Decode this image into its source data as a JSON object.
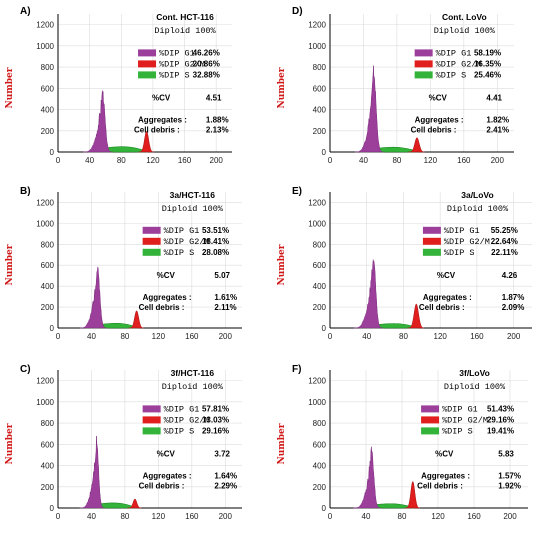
{
  "figure": {
    "y_axis_label": "Number",
    "colors": {
      "g1": "#9b3f9b",
      "g2m": "#e01e1e",
      "s": "#33b33a",
      "axis": "#000000",
      "grid": "#dcdcdc",
      "label_red": "#d01818"
    }
  },
  "chart_data": [
    {
      "type": "histogram",
      "panel": "A)",
      "title": "Cont. HCT-116",
      "subtitle": "Diploid 100%",
      "x_ticks": [
        "0",
        "40",
        "80",
        "120",
        "160",
        "200"
      ],
      "y_ticks": [
        "0",
        "200",
        "400",
        "600",
        "800",
        "1000",
        "1200"
      ],
      "xlim": [
        0,
        220
      ],
      "ylim": [
        0,
        1300
      ],
      "legend": [
        {
          "name": "%DIP G1",
          "value": "46.26%",
          "color": "#9b3f9b"
        },
        {
          "name": "%DIP G2/M",
          "value": "20.86%",
          "color": "#e01e1e"
        },
        {
          "name": "%DIP S",
          "value": "32.88%",
          "color": "#33b33a"
        }
      ],
      "cv_label": "%CV",
      "cv": "4.51",
      "aggregates_label": "Aggregates :",
      "aggregates": "1.88%",
      "debris_label": "Cell debris :",
      "debris": "2.13%",
      "g1_peak": {
        "x": 56,
        "height": 620,
        "sigma": 3.2,
        "start": 32
      },
      "g2m_peak": {
        "x": 112,
        "height": 195,
        "sigma": 2.6
      },
      "s_phase": {
        "start": 38,
        "end": 114,
        "center": 82,
        "height": 50
      }
    },
    {
      "type": "histogram",
      "panel": "D)",
      "title": "Cont. LoVo",
      "subtitle": "Diploid 100%",
      "x_ticks": [
        "0",
        "40",
        "80",
        "120",
        "160",
        "200"
      ],
      "y_ticks": [
        "0",
        "200",
        "400",
        "600",
        "800",
        "1000",
        "1200"
      ],
      "xlim": [
        0,
        220
      ],
      "ylim": [
        0,
        1300
      ],
      "legend": [
        {
          "name": "%DIP G1",
          "value": "58.19%",
          "color": "#9b3f9b"
        },
        {
          "name": "%DIP G2/M",
          "value": "16.35%",
          "color": "#e01e1e"
        },
        {
          "name": "%DIP S",
          "value": "25.46%",
          "color": "#33b33a"
        }
      ],
      "cv_label": "%CV",
      "cv": "4.41",
      "aggregates_label": "Aggregates :",
      "aggregates": "1.82%",
      "debris_label": "Cell debris :",
      "debris": "2.41%",
      "g1_peak": {
        "x": 52,
        "height": 820,
        "sigma": 3.0,
        "start": 30
      },
      "g2m_peak": {
        "x": 104,
        "height": 135,
        "sigma": 2.6
      },
      "s_phase": {
        "start": 36,
        "end": 106,
        "center": 76,
        "height": 45
      }
    },
    {
      "type": "histogram",
      "panel": "B)",
      "title": "3a/HCT-116",
      "subtitle": "Diploid 100%",
      "x_ticks": [
        "0",
        "40",
        "80",
        "120",
        "160",
        "200"
      ],
      "y_ticks": [
        "0",
        "200",
        "400",
        "600",
        "800",
        "1000",
        "1200"
      ],
      "xlim": [
        0,
        220
      ],
      "ylim": [
        0,
        1300
      ],
      "legend": [
        {
          "name": "%DIP G1",
          "value": "53.51%",
          "color": "#9b3f9b"
        },
        {
          "name": "%DIP G2/M",
          "value": "18.41%",
          "color": "#e01e1e"
        },
        {
          "name": "%DIP S",
          "value": "28.08%",
          "color": "#33b33a"
        }
      ],
      "cv_label": "%CV",
      "cv": "5.07",
      "aggregates_label": "Aggregates :",
      "aggregates": "1.61%",
      "debris_label": "Cell debris :",
      "debris": "2.11%",
      "g1_peak": {
        "x": 47,
        "height": 640,
        "sigma": 2.8,
        "start": 26
      },
      "g2m_peak": {
        "x": 94,
        "height": 165,
        "sigma": 2.4
      },
      "s_phase": {
        "start": 32,
        "end": 96,
        "center": 70,
        "height": 45
      }
    },
    {
      "type": "histogram",
      "panel": "E)",
      "title": "3a/LoVo",
      "subtitle": "Diploid 100%",
      "x_ticks": [
        "0",
        "40",
        "80",
        "120",
        "160",
        "200"
      ],
      "y_ticks": [
        "0",
        "200",
        "400",
        "600",
        "800",
        "1000",
        "1200"
      ],
      "xlim": [
        0,
        220
      ],
      "ylim": [
        0,
        1300
      ],
      "legend": [
        {
          "name": "%DIP G1",
          "value": "55.25%",
          "color": "#9b3f9b"
        },
        {
          "name": "%DIP G2/M",
          "value": "22.64%",
          "color": "#e01e1e"
        },
        {
          "name": "%DIP S",
          "value": "22.11%",
          "color": "#33b33a"
        }
      ],
      "cv_label": "%CV",
      "cv": "4.26",
      "aggregates_label": "Aggregates :",
      "aggregates": "1.87%",
      "debris_label": "Cell debris :",
      "debris": "2.09%",
      "g1_peak": {
        "x": 47,
        "height": 740,
        "sigma": 2.6,
        "start": 26
      },
      "g2m_peak": {
        "x": 94,
        "height": 230,
        "sigma": 2.4
      },
      "s_phase": {
        "start": 32,
        "end": 96,
        "center": 70,
        "height": 42
      }
    },
    {
      "type": "histogram",
      "panel": "C)",
      "title": "3f/HCT-116",
      "subtitle": "Diploid 100%",
      "x_ticks": [
        "0",
        "40",
        "80",
        "120",
        "160",
        "200"
      ],
      "y_ticks": [
        "0",
        "200",
        "400",
        "600",
        "800",
        "1000",
        "1200"
      ],
      "xlim": [
        0,
        220
      ],
      "ylim": [
        0,
        1300
      ],
      "legend": [
        {
          "name": "%DIP G1",
          "value": "57.81%",
          "color": "#9b3f9b"
        },
        {
          "name": "%DIP G2/M",
          "value": "13.03%",
          "color": "#e01e1e"
        },
        {
          "name": "%DIP S",
          "value": "29.16%",
          "color": "#33b33a"
        }
      ],
      "cv_label": "%CV",
      "cv": "3.72",
      "aggregates_label": "Aggregates :",
      "aggregates": "1.64%",
      "debris_label": "Cell debris :",
      "debris": "2.29%",
      "g1_peak": {
        "x": 46,
        "height": 680,
        "sigma": 2.4,
        "start": 26
      },
      "g2m_peak": {
        "x": 92,
        "height": 85,
        "sigma": 2.2
      },
      "s_phase": {
        "start": 30,
        "end": 94,
        "center": 66,
        "height": 48
      }
    },
    {
      "type": "histogram",
      "panel": "F)",
      "title": "3f/LoVo",
      "subtitle": "Diploid 100%",
      "x_ticks": [
        "0",
        "40",
        "80",
        "120",
        "160",
        "200"
      ],
      "y_ticks": [
        "0",
        "200",
        "400",
        "600",
        "800",
        "1000",
        "1200"
      ],
      "xlim": [
        0,
        220
      ],
      "ylim": [
        0,
        1300
      ],
      "legend": [
        {
          "name": "%DIP G1",
          "value": "51.43%",
          "color": "#9b3f9b"
        },
        {
          "name": "%DIP G2/M",
          "value": "29.16%",
          "color": "#e01e1e"
        },
        {
          "name": "%DIP S",
          "value": "19.41%",
          "color": "#33b33a"
        }
      ],
      "cv_label": "%CV",
      "cv": "5.83",
      "aggregates_label": "Aggregates :",
      "aggregates": "1.57%",
      "debris_label": "Cell debris :",
      "debris": "1.92%",
      "g1_peak": {
        "x": 46,
        "height": 600,
        "sigma": 2.6,
        "start": 26
      },
      "g2m_peak": {
        "x": 92,
        "height": 250,
        "sigma": 2.2
      },
      "s_phase": {
        "start": 30,
        "end": 94,
        "center": 68,
        "height": 40
      }
    }
  ]
}
